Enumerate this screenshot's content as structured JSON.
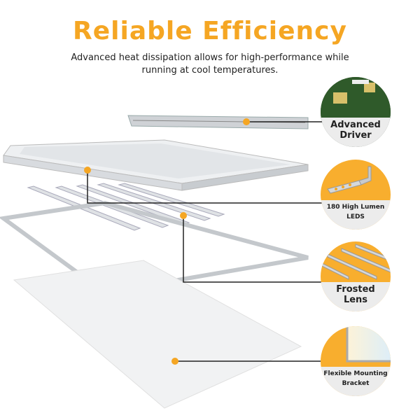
{
  "header": {
    "title": "Reliable Efficiency",
    "subtitle": "Advanced heat dissipation allows for high-performance while running at cool temperatures."
  },
  "colors": {
    "accent": "#f5a623",
    "callout_bg": "#f8ae2e",
    "label_bg": "#ececec",
    "line": "#222222"
  },
  "callouts": [
    {
      "line1": "Advanced",
      "line2": "Driver",
      "icon": "circuit-board-photo"
    },
    {
      "line1": "180 High Lumen",
      "line2": "LEDS",
      "icon": "led-bracket"
    },
    {
      "line1": "Frosted",
      "line2": "Lens",
      "icon": "led-strips"
    },
    {
      "line1": "Flexible Mounting",
      "line2": "Bracket",
      "icon": "panel-corner"
    }
  ]
}
